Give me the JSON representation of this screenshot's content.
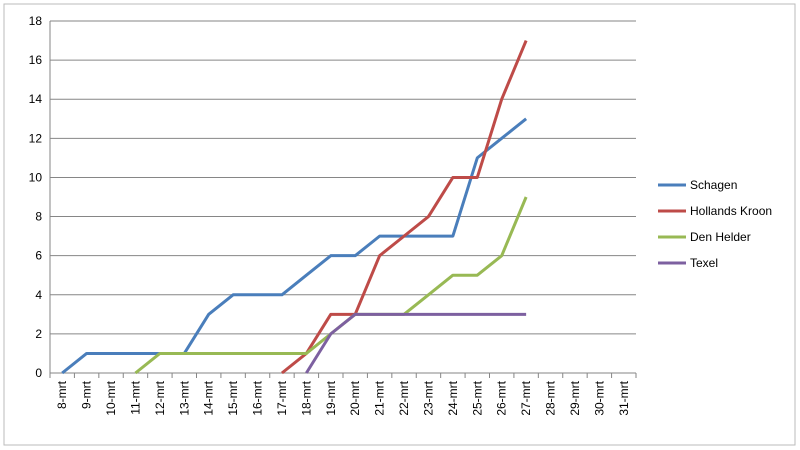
{
  "chart_data": {
    "type": "line",
    "categories": [
      "8-mrt",
      "9-mrt",
      "10-mrt",
      "11-mrt",
      "12-mrt",
      "13-mrt",
      "14-mrt",
      "15-mrt",
      "16-mrt",
      "17-mrt",
      "18-mrt",
      "19-mrt",
      "20-mrt",
      "21-mrt",
      "22-mrt",
      "23-mrt",
      "24-mrt",
      "25-mrt",
      "26-mrt",
      "27-mrt",
      "28-mrt",
      "29-mrt",
      "30-mrt",
      "31-mrt"
    ],
    "series": [
      {
        "name": "Schagen",
        "color": "#4a7ebb",
        "values": [
          0,
          1,
          1,
          1,
          1,
          1,
          3,
          4,
          4,
          4,
          5,
          6,
          6,
          7,
          7,
          7,
          7,
          11,
          12,
          13,
          null,
          null,
          null,
          null
        ]
      },
      {
        "name": "Hollands Kroon",
        "color": "#be4b48",
        "values": [
          null,
          null,
          null,
          null,
          null,
          null,
          null,
          null,
          null,
          0,
          1,
          3,
          3,
          6,
          7,
          8,
          10,
          10,
          14,
          17,
          null,
          null,
          null,
          null
        ]
      },
      {
        "name": "Den Helder",
        "color": "#98b954",
        "values": [
          null,
          null,
          null,
          0,
          1,
          1,
          1,
          1,
          1,
          1,
          1,
          2,
          3,
          3,
          3,
          4,
          5,
          5,
          6,
          9,
          null,
          null,
          null,
          null
        ]
      },
      {
        "name": "Texel",
        "color": "#7d60a0",
        "values": [
          null,
          null,
          null,
          null,
          null,
          null,
          null,
          null,
          null,
          null,
          0,
          2,
          3,
          3,
          3,
          3,
          3,
          3,
          3,
          3,
          null,
          null,
          null,
          null
        ]
      }
    ],
    "ylim": [
      0,
      18
    ],
    "yticks": [
      0,
      2,
      4,
      6,
      8,
      10,
      12,
      14,
      16,
      18
    ],
    "grid": true,
    "legend": "right"
  }
}
